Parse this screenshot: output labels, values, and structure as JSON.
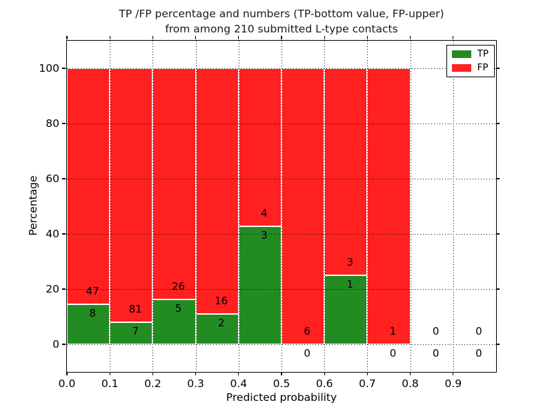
{
  "title": {
    "line1": "TP /FP percentage and numbers (TP-bottom value, FP-upper)",
    "line2": "from among 210 submitted L-type contacts"
  },
  "axes": {
    "xlabel": "Predicted probability",
    "ylabel": "Percentage"
  },
  "legend": {
    "tp_label": "TP",
    "fp_label": "FP"
  },
  "colors": {
    "tp_green": "#228B22",
    "fp_red": "#FF2020",
    "grid": "#000000",
    "background": "#FFFFFF"
  },
  "chart_data": {
    "type": "bar",
    "stacked": true,
    "title": "TP /FP percentage and numbers (TP-bottom value, FP-upper) from among 210 submitted L-type contacts",
    "xlabel": "Predicted probability",
    "ylabel": "Percentage",
    "total_submitted_contacts": 210,
    "bin_edges": [
      0.0,
      0.1,
      0.2,
      0.3,
      0.4,
      0.5,
      0.6,
      0.7,
      0.8,
      0.9,
      1.0
    ],
    "series": [
      {
        "name": "TP",
        "color": "#228B22",
        "counts": [
          8,
          7,
          5,
          2,
          3,
          0,
          1,
          0,
          0,
          0
        ]
      },
      {
        "name": "FP",
        "color": "#FF2020",
        "counts": [
          47,
          81,
          26,
          16,
          4,
          6,
          3,
          1,
          0,
          0
        ]
      }
    ],
    "tp_percent_per_bin": [
      14.5,
      8.0,
      16.1,
      11.1,
      42.9,
      0.0,
      25.0,
      0.0,
      0.0,
      0.0
    ],
    "bar_total_percent": 100,
    "annotation_rule": "FP count printed above green segment top, TP count printed below it",
    "xticks": [
      "0.0",
      "0.1",
      "0.2",
      "0.3",
      "0.4",
      "0.5",
      "0.6",
      "0.7",
      "0.8",
      "0.9"
    ],
    "yticks": [
      "0",
      "20",
      "40",
      "60",
      "80",
      "100"
    ],
    "xlim": [
      0,
      1
    ],
    "ylim": [
      -10,
      110
    ],
    "grid": {
      "on": true,
      "style": "dotted"
    },
    "legend": {
      "position": "upper right",
      "entries": [
        "TP",
        "FP"
      ]
    }
  }
}
